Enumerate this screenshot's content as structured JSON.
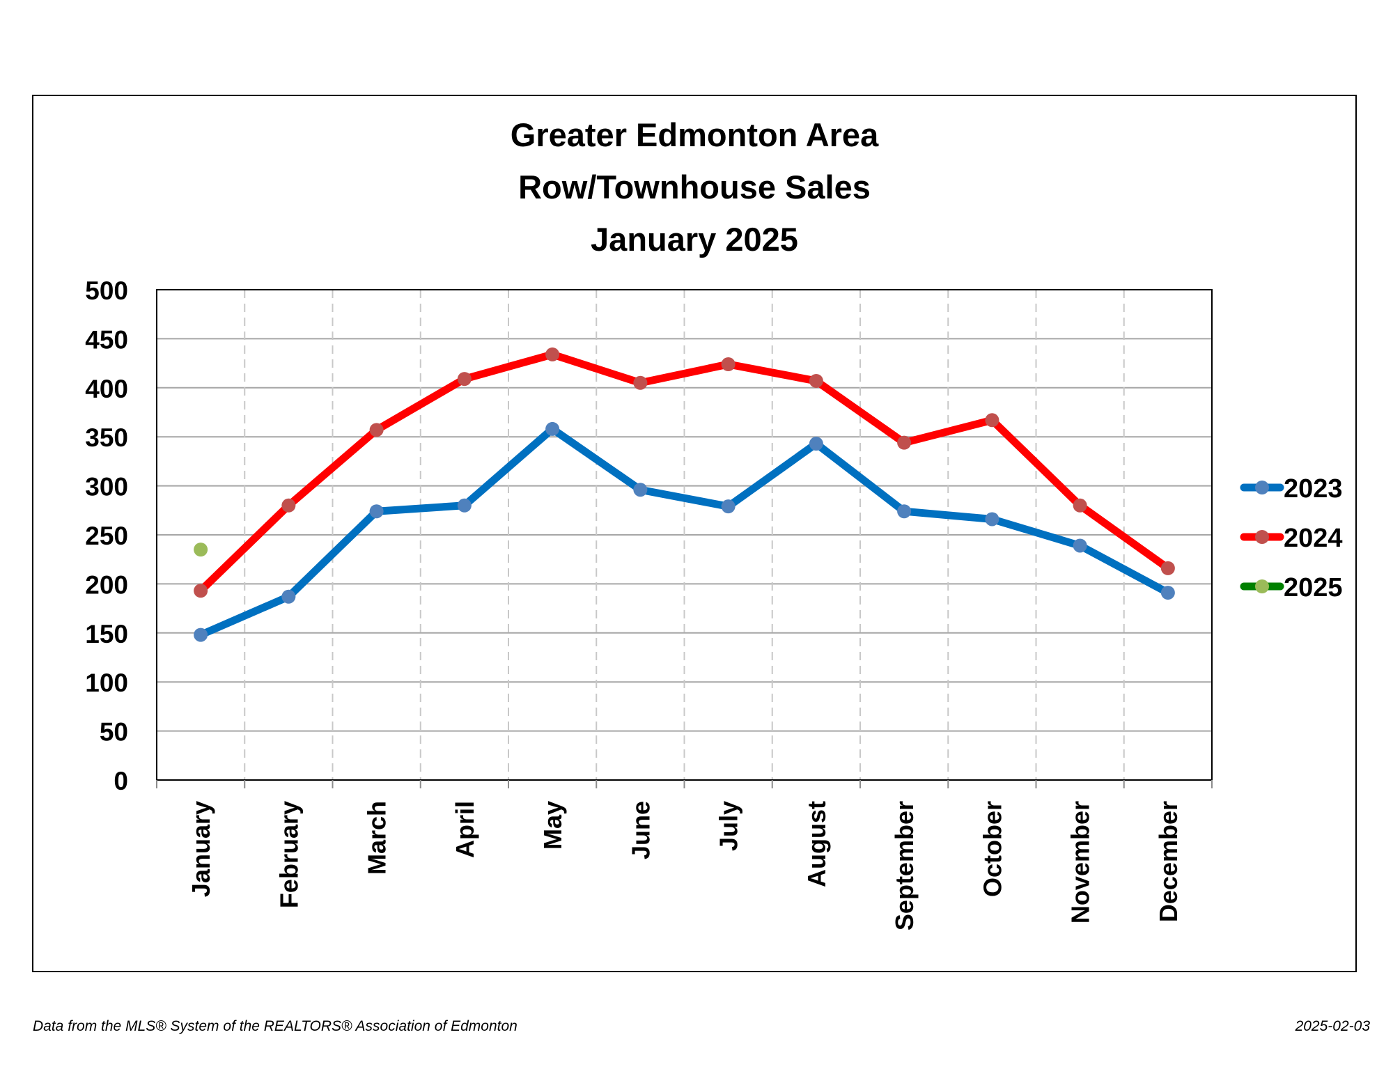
{
  "chart_data": {
    "type": "line",
    "title_lines": [
      "Greater Edmonton Area",
      "Row/Townhouse Sales",
      "January 2025"
    ],
    "categories": [
      "January",
      "February",
      "March",
      "April",
      "May",
      "June",
      "July",
      "August",
      "September",
      "October",
      "November",
      "December"
    ],
    "y_ticks": [
      "0",
      "50",
      "100",
      "150",
      "200",
      "250",
      "300",
      "350",
      "400",
      "450",
      "500"
    ],
    "ylim": [
      0,
      500
    ],
    "grid": true,
    "legend_position": "right",
    "series": [
      {
        "name": "2023",
        "values": [
          148,
          187,
          274,
          280,
          358,
          296,
          279,
          343,
          274,
          266,
          239,
          191
        ],
        "line_color": "#0070C0",
        "marker_color": "#4F81BD"
      },
      {
        "name": "2024",
        "values": [
          193,
          280,
          357,
          409,
          434,
          405,
          424,
          407,
          344,
          367,
          280,
          216
        ],
        "line_color": "#FF0000",
        "marker_color": "#C0504D"
      },
      {
        "name": "2025",
        "values": [
          235,
          null,
          null,
          null,
          null,
          null,
          null,
          null,
          null,
          null,
          null,
          null
        ],
        "line_color": "#008000",
        "marker_color": "#9BBB59"
      }
    ]
  },
  "footer": {
    "source": "Data from the MLS® System of the REALTORS® Association of Edmonton",
    "date": "2025-02-03"
  }
}
